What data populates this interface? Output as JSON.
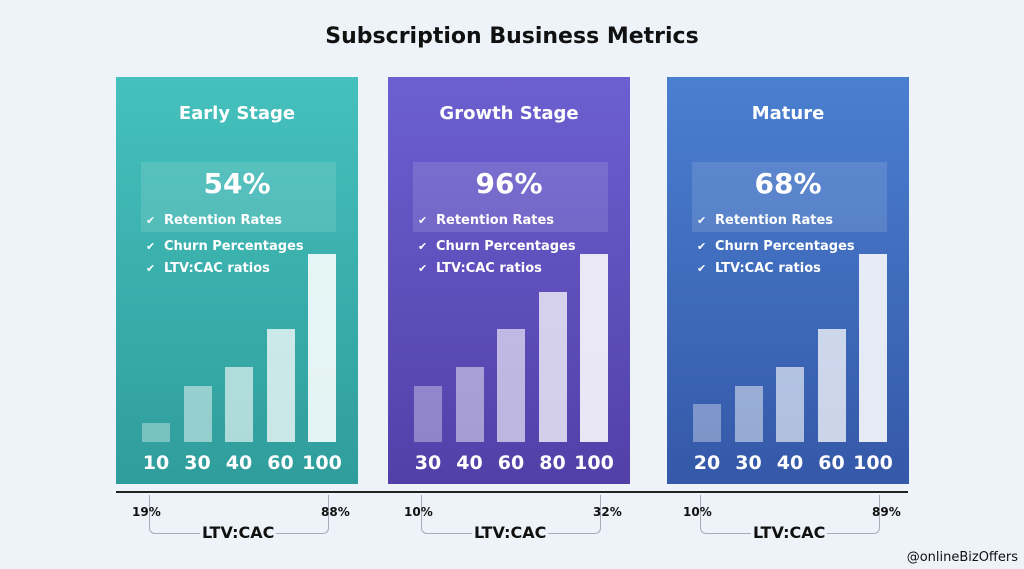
{
  "chart_data": [
    {
      "type": "bar",
      "title": "Early Stage",
      "headline": "54%",
      "features": [
        "Retention Rates",
        "Churn Percentages",
        "LTV:CAC ratios"
      ],
      "categories": [
        "10",
        "30",
        "40",
        "60",
        "100"
      ],
      "values": [
        10,
        30,
        40,
        60,
        100
      ],
      "ltv_range": [
        "19%",
        "88%"
      ],
      "ltv_label": "LTV:CAC",
      "color": "#3fb8b4"
    },
    {
      "type": "bar",
      "title": "Growth Stage",
      "headline": "96%",
      "features": [
        "Retention Rates",
        "Churn Percentages",
        "LTV:CAC ratios"
      ],
      "categories": [
        "30",
        "40",
        "60",
        "80",
        "100"
      ],
      "values": [
        30,
        40,
        60,
        80,
        100
      ],
      "ltv_range": [
        "10%",
        "32%"
      ],
      "ltv_label": "LTV:CAC",
      "color": "#6a5acd"
    },
    {
      "type": "bar",
      "title": "Mature",
      "headline": "68%",
      "features": [
        "Retention Rates",
        "Churn Percentages",
        "LTV:CAC ratios"
      ],
      "categories": [
        "20",
        "30",
        "40",
        "60",
        "100"
      ],
      "values": [
        20,
        30,
        40,
        60,
        100
      ],
      "ltv_range": [
        "10%",
        "89%"
      ],
      "ltv_label": "LTV:CAC",
      "color": "#3f6fc4"
    }
  ],
  "title": "Subscription Business Metrics",
  "credit": "@onlineBizOffers"
}
